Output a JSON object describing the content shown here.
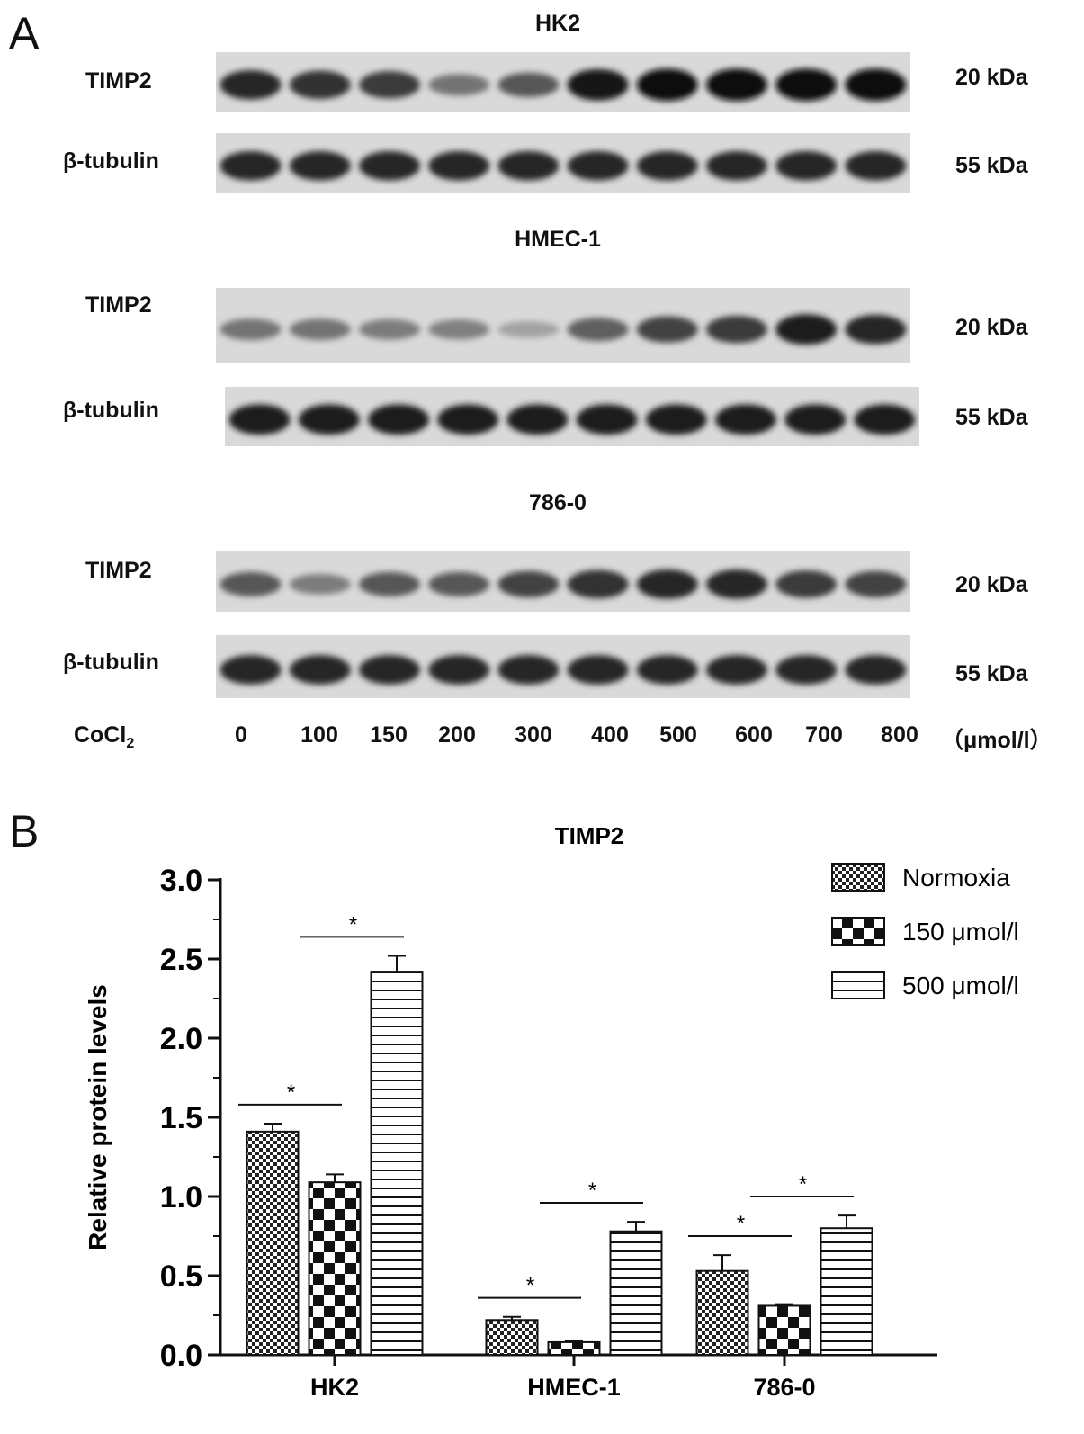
{
  "panel_a": {
    "letter": "A",
    "blots": [
      {
        "title": "HK2",
        "rows": [
          {
            "label": "TIMP2",
            "kda": "20 kDa",
            "intensities": [
              0.85,
              0.8,
              0.75,
              0.45,
              0.6,
              0.95,
              1.0,
              1.0,
              1.0,
              1.0
            ]
          },
          {
            "label": "β-tubulin",
            "kda": "55 kDa",
            "intensities": [
              0.85,
              0.85,
              0.85,
              0.85,
              0.85,
              0.85,
              0.85,
              0.85,
              0.85,
              0.85
            ]
          }
        ]
      },
      {
        "title": "HMEC-1",
        "rows": [
          {
            "label": "TIMP2",
            "kda": "20 kDa",
            "intensities": [
              0.45,
              0.45,
              0.4,
              0.38,
              0.2,
              0.55,
              0.7,
              0.75,
              0.9,
              0.85
            ]
          },
          {
            "label": "β-tubulin",
            "kda": "55 kDa",
            "intensities": [
              0.9,
              0.9,
              0.9,
              0.9,
              0.9,
              0.9,
              0.9,
              0.9,
              0.9,
              0.9
            ]
          }
        ]
      },
      {
        "title": "786-0",
        "rows": [
          {
            "label": "TIMP2",
            "kda": "20 kDa",
            "intensities": [
              0.6,
              0.4,
              0.6,
              0.6,
              0.7,
              0.8,
              0.85,
              0.85,
              0.75,
              0.7
            ]
          },
          {
            "label": "β-tubulin",
            "kda": "55 kDa",
            "intensities": [
              0.85,
              0.85,
              0.85,
              0.85,
              0.85,
              0.85,
              0.85,
              0.85,
              0.85,
              0.85
            ]
          }
        ]
      }
    ],
    "treatment_label": "CoCl",
    "treatment_subscript": "2",
    "concentrations": [
      "0",
      "100",
      "150",
      "200",
      "300",
      "400",
      "500",
      "600",
      "700",
      "800"
    ],
    "unit": "（μmol/l）"
  },
  "panel_b": {
    "letter": "B"
  },
  "chart_data": {
    "type": "bar",
    "title": "TIMP2",
    "ylabel": "Relative protein levels",
    "xlabel": "",
    "ylim": [
      0,
      3.0
    ],
    "yticks": [
      "0.0",
      "0.5",
      "1.0",
      "1.5",
      "2.0",
      "2.5",
      "3.0"
    ],
    "categories": [
      "HK2",
      "HMEC-1",
      "786-0"
    ],
    "series": [
      {
        "name": "Normoxia",
        "pattern": "fine-check",
        "values": [
          1.41,
          0.22,
          0.53
        ],
        "errors": [
          0.05,
          0.02,
          0.1
        ]
      },
      {
        "name": "150 μmol/l",
        "pattern": "coarse-check",
        "values": [
          1.09,
          0.08,
          0.31
        ],
        "errors": [
          0.05,
          0.01,
          0.01
        ]
      },
      {
        "name": "500 μmol/l",
        "pattern": "horizontal-lines",
        "values": [
          2.42,
          0.78,
          0.8
        ],
        "errors": [
          0.1,
          0.06,
          0.08
        ]
      }
    ],
    "significance": [
      {
        "category": 0,
        "from": 0,
        "to": 1,
        "label": "*"
      },
      {
        "category": 0,
        "from": 1,
        "to": 2,
        "label": "*"
      },
      {
        "category": 1,
        "from": 0,
        "to": 1,
        "label": "*"
      },
      {
        "category": 1,
        "from": 1,
        "to": 2,
        "label": "*"
      },
      {
        "category": 2,
        "from": 0,
        "to": 1,
        "label": "*"
      },
      {
        "category": 2,
        "from": 1,
        "to": 2,
        "label": "*"
      }
    ],
    "legend_position": "top-right",
    "grid": false
  }
}
